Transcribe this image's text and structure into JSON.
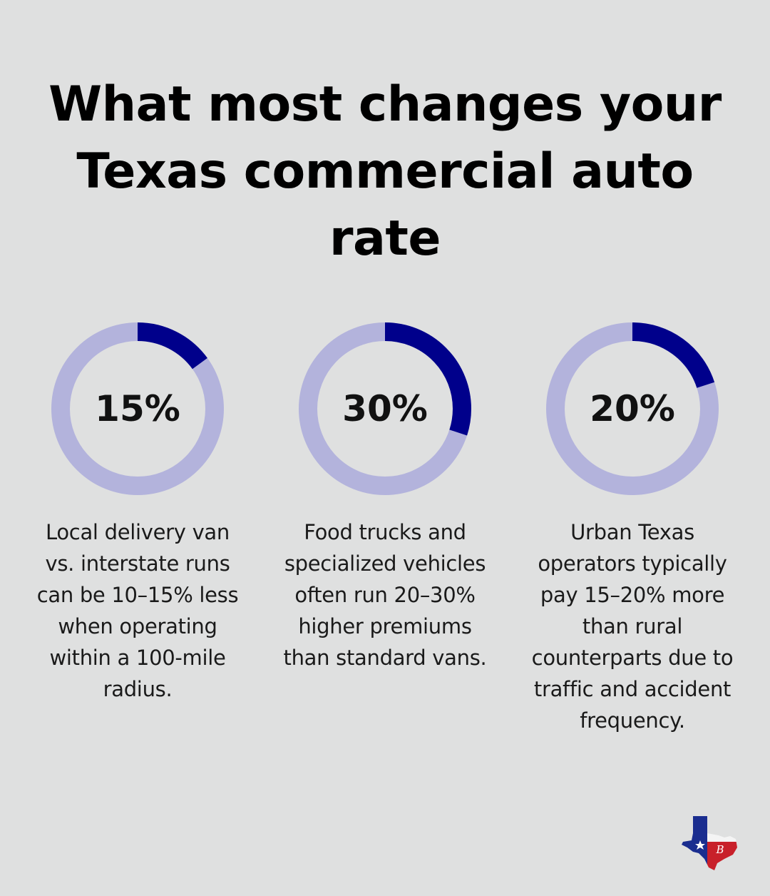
{
  "title": "What most changes your Texas commercial auto rate",
  "colors": {
    "background": "#dfe0e0",
    "ring_track": "#b3b3dc",
    "ring_fill": "#00008b",
    "text": "#111111"
  },
  "chart_data": {
    "type": "pie",
    "title": "What most changes your Texas commercial auto rate",
    "items": [
      {
        "value": 15,
        "label": "15%",
        "description": "Local delivery van vs. interstate runs can be 10–15% less when operating within a 100-mile radius."
      },
      {
        "value": 30,
        "label": "30%",
        "description": "Food trucks and specialized vehicles often run 20–30% higher premiums than standard vans."
      },
      {
        "value": 20,
        "label": "20%",
        "description": "Urban Texas operators typically pay 15–20% more than rural counterparts due to traffic and accident frequency."
      }
    ]
  },
  "logo": {
    "icon": "texas-flag-map-icon",
    "monogram": "B"
  }
}
